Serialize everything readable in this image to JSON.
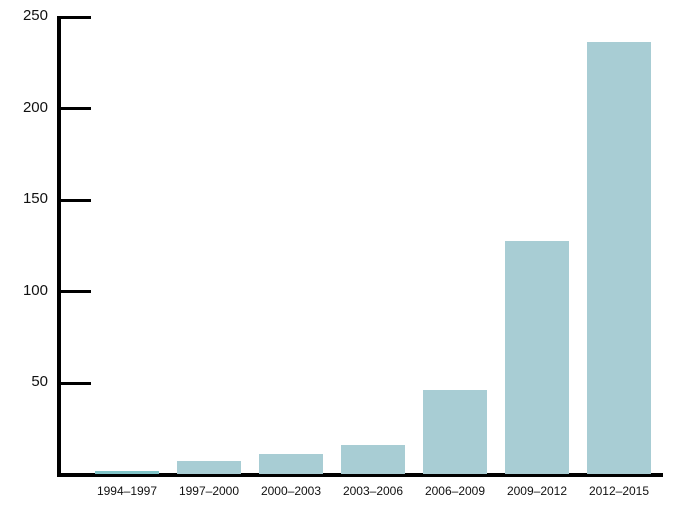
{
  "chart_data": {
    "type": "bar",
    "title": "",
    "xlabel": "",
    "ylabel": "",
    "categories": [
      "1994–1997",
      "1997–2000",
      "2000–2003",
      "2003–2006",
      "2006–2009",
      "2009–2012",
      "2012–2015"
    ],
    "values": [
      1.5,
      7,
      11,
      16,
      46,
      127,
      236
    ],
    "ylim": [
      0,
      250
    ],
    "yticks": [
      50,
      100,
      150,
      200,
      250
    ],
    "grid": false,
    "legend": null,
    "bar_color": "#a8cdd4",
    "axis_color": "#000000"
  }
}
